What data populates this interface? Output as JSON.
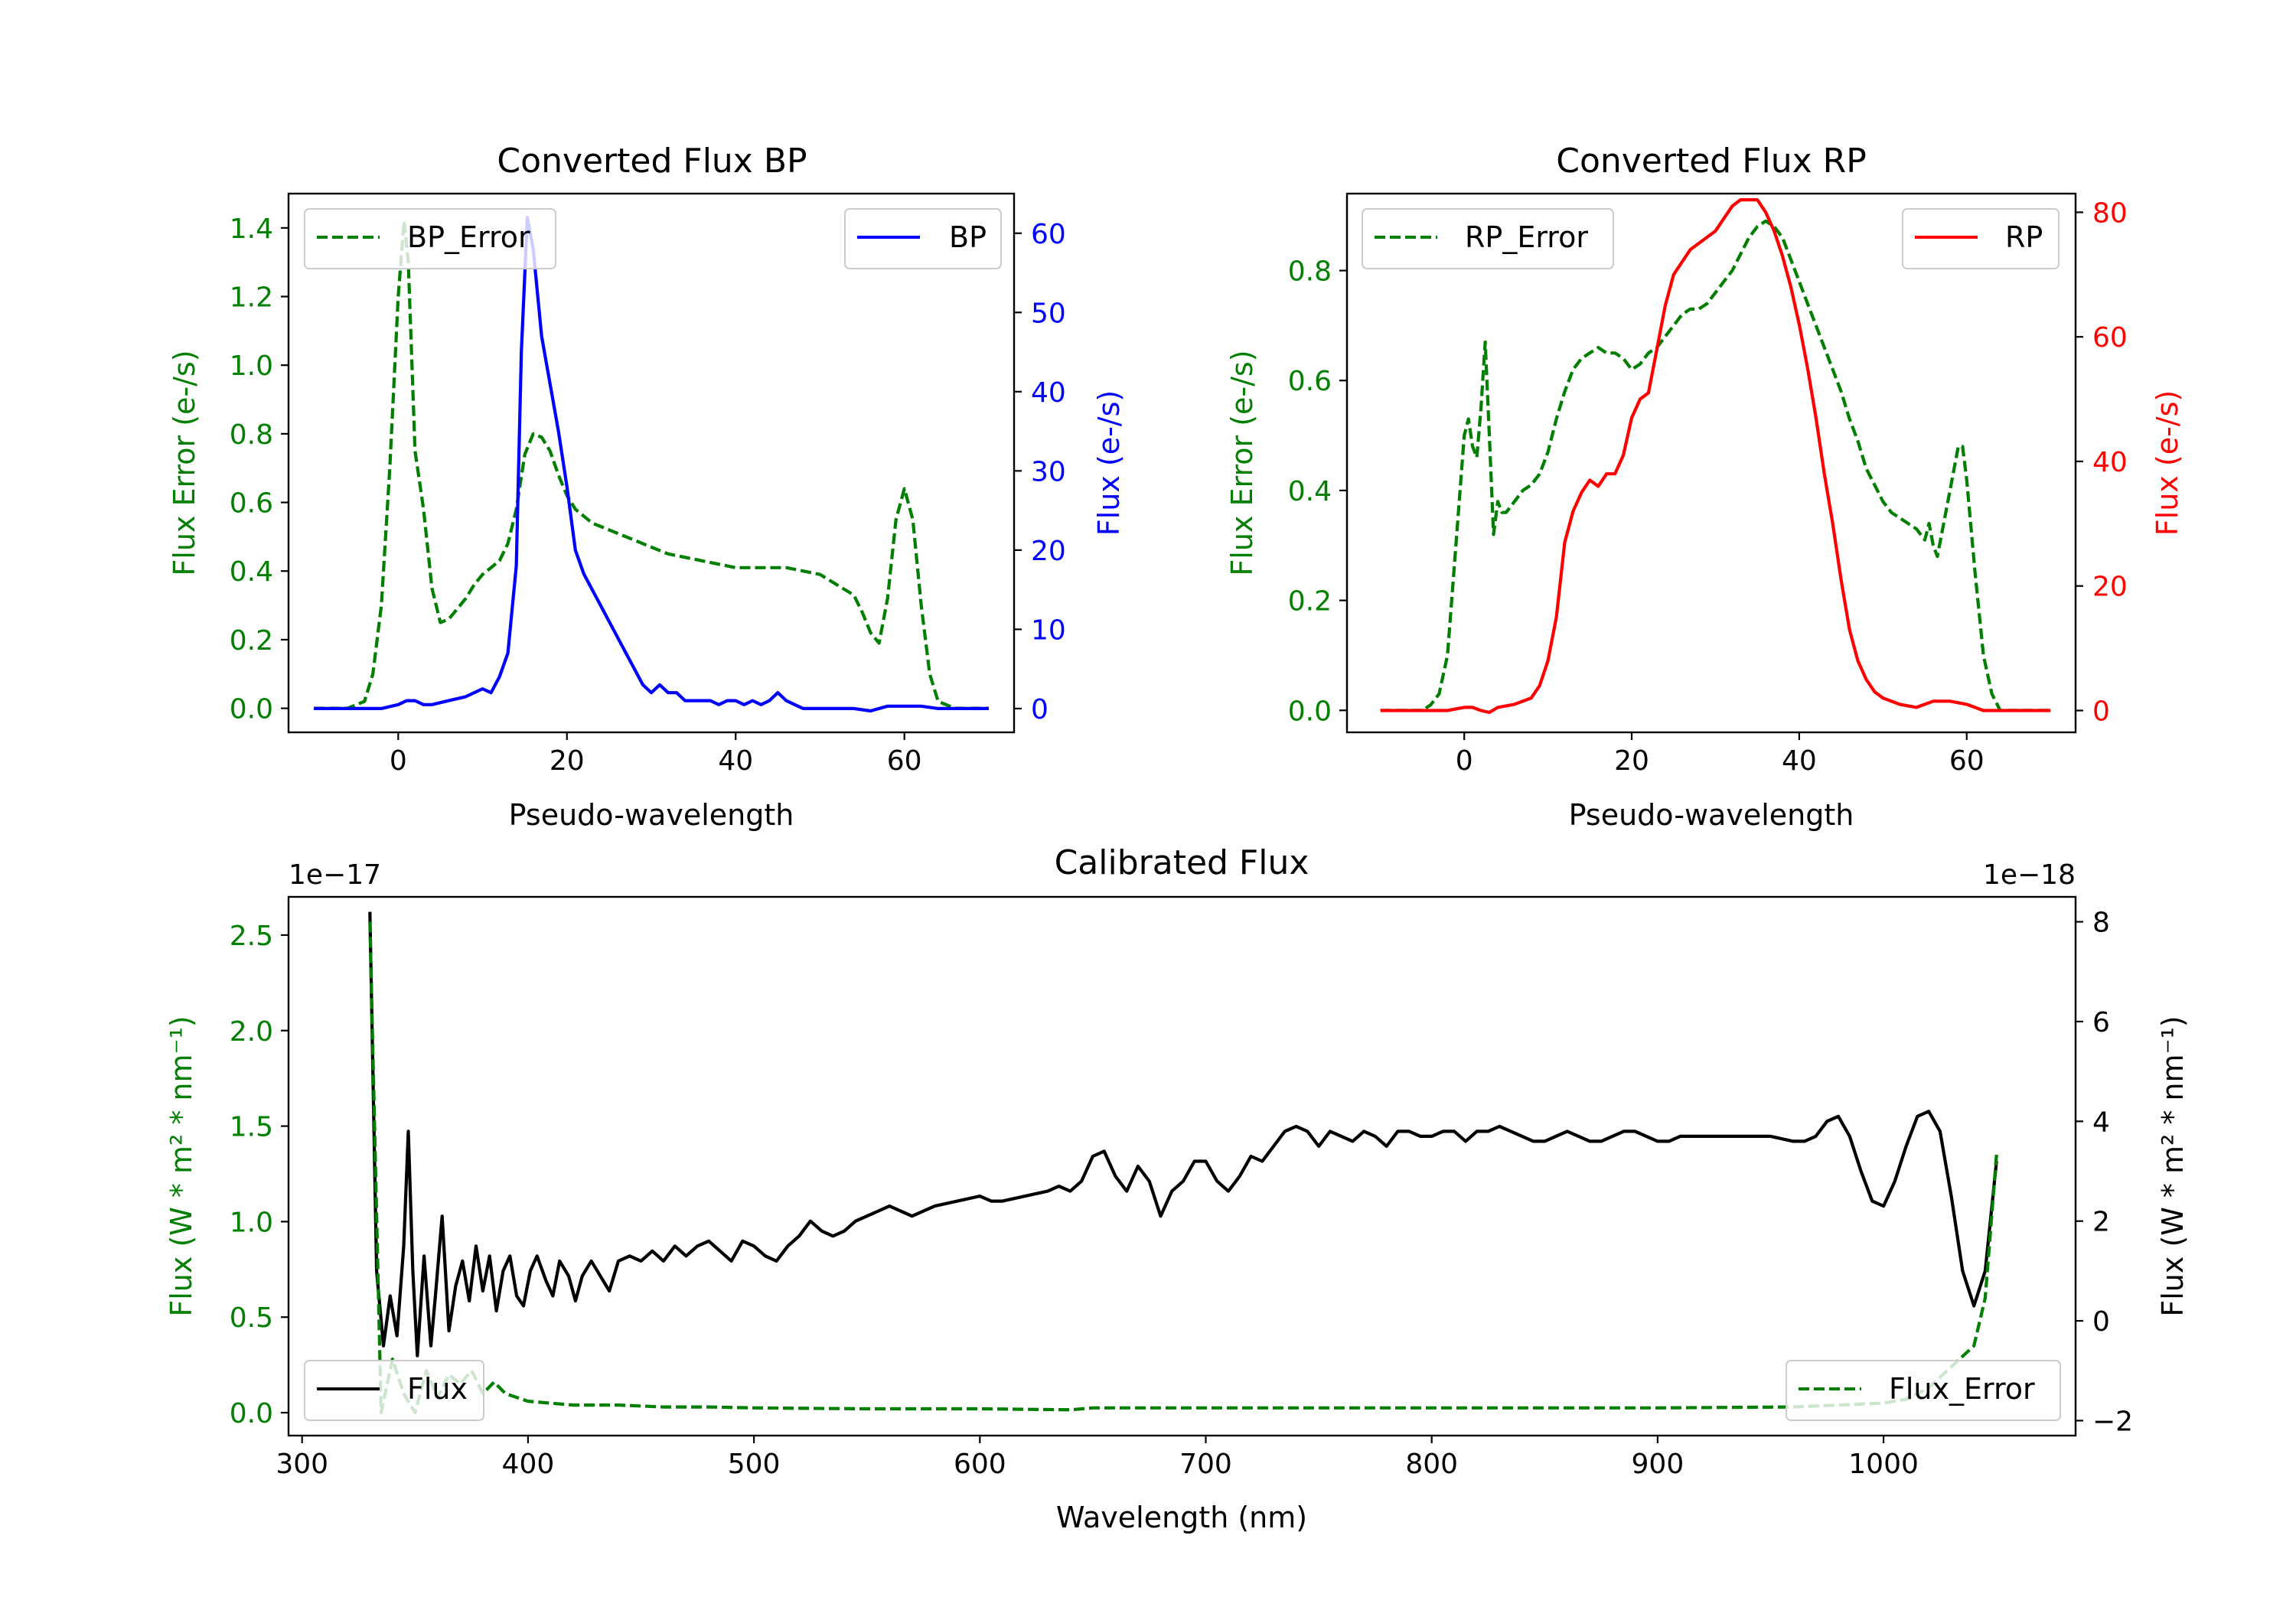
{
  "colors": {
    "bp": "#0000ff",
    "rp": "#ff0000",
    "error": "#007f00",
    "flux": "#000000",
    "axis": "#000000"
  },
  "chart_data": [
    {
      "id": "bp",
      "type": "line",
      "title": "Converted Flux BP",
      "xlabel": "Pseudo-wavelength",
      "ylabel_left": "Flux Error (e-/s)",
      "ylabel_right": "Flux (e-/s)",
      "xlim": [
        -13,
        73
      ],
      "ylim_left": [
        -0.07,
        1.5
      ],
      "ylim_right": [
        -3,
        65
      ],
      "xticks": [
        0,
        20,
        40,
        60
      ],
      "yticks_left": [
        0.0,
        0.2,
        0.4,
        0.6,
        0.8,
        1.0,
        1.2,
        1.4
      ],
      "ytick_labels_left": [
        "0.0",
        "0.2",
        "0.4",
        "0.6",
        "0.8",
        "1.0",
        "1.2",
        "1.4"
      ],
      "yticks_right": [
        0,
        10,
        20,
        30,
        40,
        50,
        60
      ],
      "ytick_labels_right": [
        "0",
        "10",
        "20",
        "30",
        "40",
        "50",
        "60"
      ],
      "series": [
        {
          "name": "BP_Error",
          "axis": "left",
          "color": "#007f00",
          "style": "dashed",
          "legend": "upper left",
          "x": [
            -10,
            -6,
            -4,
            -3,
            -2,
            -1,
            0,
            0.7,
            1.2,
            2,
            3,
            4,
            5,
            6,
            7,
            8,
            9,
            10,
            11,
            12,
            13,
            14,
            15,
            16,
            17,
            18,
            19,
            20,
            21,
            22,
            23,
            24,
            26,
            28,
            30,
            32,
            34,
            36,
            38,
            40,
            42,
            44,
            46,
            48,
            50,
            52,
            54,
            55,
            56,
            57,
            58,
            59,
            60,
            61,
            62,
            63,
            64,
            66,
            70
          ],
          "y": [
            0.0,
            0.0,
            0.02,
            0.1,
            0.3,
            0.7,
            1.2,
            1.42,
            1.3,
            0.75,
            0.58,
            0.35,
            0.25,
            0.26,
            0.29,
            0.32,
            0.36,
            0.39,
            0.41,
            0.43,
            0.48,
            0.58,
            0.74,
            0.8,
            0.79,
            0.75,
            0.68,
            0.62,
            0.58,
            0.56,
            0.54,
            0.53,
            0.51,
            0.49,
            0.47,
            0.45,
            0.44,
            0.43,
            0.42,
            0.41,
            0.41,
            0.41,
            0.41,
            0.4,
            0.39,
            0.36,
            0.33,
            0.28,
            0.22,
            0.19,
            0.32,
            0.55,
            0.64,
            0.55,
            0.3,
            0.1,
            0.02,
            0.0,
            0.0
          ]
        },
        {
          "name": "BP",
          "axis": "right",
          "color": "#0000ff",
          "style": "solid",
          "legend": "upper right",
          "x": [
            -10,
            -4,
            -2,
            0,
            1,
            2,
            3,
            4,
            6,
            8,
            10,
            11,
            12,
            13,
            14,
            14.6,
            15.3,
            16,
            17,
            18,
            19,
            20,
            21,
            22,
            23,
            24,
            25,
            26,
            27,
            28,
            29,
            30,
            31,
            32,
            33,
            34,
            35,
            36,
            37,
            38,
            39,
            40,
            41,
            42,
            43,
            44,
            45,
            46,
            47,
            48,
            50,
            52,
            54,
            56,
            58,
            60,
            62,
            64,
            66,
            68,
            70
          ],
          "y": [
            0,
            0,
            0,
            0.5,
            1,
            1,
            0.5,
            0.5,
            1,
            1.5,
            2.5,
            2,
            4,
            7,
            18,
            45,
            62,
            58,
            47,
            41,
            35,
            28,
            20,
            17,
            15,
            13,
            11,
            9,
            7,
            5,
            3,
            2,
            3,
            2,
            2,
            1,
            1,
            1,
            1,
            0.5,
            1,
            1,
            0.5,
            1,
            0.5,
            1,
            2,
            1,
            0.5,
            0,
            0,
            0,
            0,
            -0.3,
            0.3,
            0.3,
            0.3,
            0,
            0,
            0,
            0
          ]
        }
      ]
    },
    {
      "id": "rp",
      "type": "line",
      "title": "Converted Flux RP",
      "xlabel": "Pseudo-wavelength",
      "ylabel_left": "Flux Error (e-/s)",
      "ylabel_right": "Flux (e-/s)",
      "xlim": [
        -14,
        73
      ],
      "ylim_left": [
        -0.04,
        0.94
      ],
      "ylim_right": [
        -3.5,
        83
      ],
      "xticks": [
        0,
        20,
        40,
        60
      ],
      "yticks_left": [
        0.0,
        0.2,
        0.4,
        0.6,
        0.8
      ],
      "ytick_labels_left": [
        "0.0",
        "0.2",
        "0.4",
        "0.6",
        "0.8"
      ],
      "yticks_right": [
        0,
        20,
        40,
        60,
        80
      ],
      "ytick_labels_right": [
        "0",
        "20",
        "40",
        "60",
        "80"
      ],
      "series": [
        {
          "name": "RP_Error",
          "axis": "left",
          "color": "#007f00",
          "style": "dashed",
          "legend": "upper left",
          "x": [
            -10,
            -5,
            -4,
            -3,
            -2,
            -1,
            0,
            0.5,
            1,
            1.5,
            2,
            2.5,
            3,
            3.5,
            4,
            4.5,
            5,
            6,
            7,
            8,
            9,
            10,
            11,
            12,
            13,
            14,
            15,
            16,
            17,
            18,
            19,
            20,
            21,
            22,
            23,
            24,
            25,
            26,
            27,
            28,
            29,
            30,
            31,
            32,
            33,
            34,
            35,
            36,
            37,
            38,
            39,
            40,
            41,
            42,
            43,
            44,
            45,
            46,
            47,
            48,
            49,
            50,
            51,
            52,
            53,
            54,
            55,
            55.5,
            56,
            56.5,
            57,
            58,
            59,
            59.5,
            60,
            61,
            62,
            63,
            64,
            66,
            70
          ],
          "y": [
            0.0,
            0.0,
            0.01,
            0.03,
            0.1,
            0.3,
            0.5,
            0.53,
            0.48,
            0.46,
            0.55,
            0.67,
            0.5,
            0.32,
            0.38,
            0.36,
            0.36,
            0.38,
            0.4,
            0.41,
            0.43,
            0.47,
            0.53,
            0.58,
            0.62,
            0.64,
            0.65,
            0.66,
            0.65,
            0.65,
            0.64,
            0.62,
            0.63,
            0.65,
            0.66,
            0.68,
            0.7,
            0.72,
            0.73,
            0.73,
            0.74,
            0.76,
            0.78,
            0.8,
            0.83,
            0.86,
            0.88,
            0.89,
            0.88,
            0.86,
            0.82,
            0.78,
            0.74,
            0.7,
            0.66,
            0.62,
            0.58,
            0.53,
            0.49,
            0.44,
            0.41,
            0.38,
            0.36,
            0.35,
            0.34,
            0.33,
            0.31,
            0.34,
            0.3,
            0.28,
            0.32,
            0.4,
            0.48,
            0.48,
            0.42,
            0.25,
            0.1,
            0.03,
            0.0,
            0.0,
            0.0
          ]
        },
        {
          "name": "RP",
          "axis": "right",
          "color": "#ff0000",
          "style": "solid",
          "legend": "upper right",
          "x": [
            -10,
            -4,
            -2,
            0,
            1,
            2,
            3,
            4,
            6,
            8,
            9,
            10,
            11,
            12,
            13,
            14,
            15,
            16,
            17,
            18,
            19,
            20,
            21,
            22,
            23,
            24,
            25,
            26,
            27,
            28,
            29,
            30,
            31,
            32,
            33,
            34,
            35,
            36,
            37,
            38,
            39,
            40,
            41,
            42,
            43,
            44,
            45,
            46,
            47,
            48,
            49,
            50,
            52,
            54,
            56,
            58,
            60,
            62,
            64,
            66,
            70
          ],
          "y": [
            0,
            0,
            0,
            0.5,
            0.5,
            0,
            -0.3,
            0.5,
            1,
            2,
            4,
            8,
            15,
            27,
            32,
            35,
            37,
            36,
            38,
            38,
            41,
            47,
            50,
            51,
            58,
            65,
            70,
            72,
            74,
            75,
            76,
            77,
            79,
            81,
            82,
            82,
            82,
            80,
            77,
            73,
            68,
            62,
            55,
            47,
            38,
            30,
            21,
            13,
            8,
            5,
            3,
            2,
            1,
            0.5,
            1.5,
            1.5,
            1,
            0,
            0,
            0,
            0
          ]
        }
      ]
    },
    {
      "id": "calibrated",
      "type": "line",
      "title": "Calibrated Flux",
      "xlabel": "Wavelength (nm)",
      "ylabel_left": "Flux (W * m$^2$ * nm$^{-1}$)",
      "ylabel_left_text": "Flux (W * m² * nm⁻¹)",
      "ylabel_right_text": "Flux (W * m² * nm⁻¹)",
      "offset_left": "1e−17",
      "offset_right": "1e−18",
      "xlim": [
        294,
        1085
      ],
      "ylim_left": [
        -0.12,
        2.7
      ],
      "ylim_right": [
        -2.3,
        8.5
      ],
      "xticks": [
        300,
        400,
        500,
        600,
        700,
        800,
        900,
        1000
      ],
      "yticks_left": [
        0.0,
        0.5,
        1.0,
        1.5,
        2.0,
        2.5
      ],
      "ytick_labels_left": [
        "0.0",
        "0.5",
        "1.0",
        "1.5",
        "2.0",
        "2.5"
      ],
      "yticks_right": [
        -2,
        0,
        2,
        4,
        6,
        8
      ],
      "ytick_labels_right": [
        "−2",
        "0",
        "2",
        "4",
        "6",
        "8"
      ],
      "series": [
        {
          "name": "Flux",
          "axis": "right",
          "color": "#000000",
          "style": "solid",
          "legend": "lower left",
          "x": [
            330,
            333,
            336,
            339,
            342,
            345,
            347,
            349,
            351,
            354,
            357,
            359,
            362,
            365,
            368,
            371,
            374,
            377,
            380,
            383,
            386,
            389,
            392,
            395,
            398,
            401,
            404,
            408,
            411,
            414,
            418,
            421,
            424,
            428,
            432,
            436,
            440,
            445,
            450,
            455,
            460,
            465,
            470,
            475,
            480,
            485,
            490,
            495,
            500,
            505,
            510,
            515,
            520,
            525,
            530,
            535,
            540,
            545,
            550,
            560,
            570,
            580,
            590,
            600,
            605,
            610,
            620,
            630,
            635,
            640,
            645,
            650,
            655,
            660,
            665,
            670,
            675,
            680,
            685,
            690,
            695,
            700,
            705,
            710,
            715,
            720,
            725,
            730,
            735,
            740,
            745,
            750,
            755,
            760,
            765,
            770,
            775,
            780,
            785,
            790,
            795,
            800,
            805,
            810,
            815,
            820,
            825,
            830,
            835,
            840,
            845,
            850,
            855,
            860,
            865,
            870,
            875,
            880,
            885,
            890,
            895,
            900,
            905,
            910,
            920,
            930,
            940,
            950,
            960,
            965,
            970,
            975,
            980,
            985,
            990,
            995,
            1000,
            1005,
            1010,
            1015,
            1020,
            1025,
            1030,
            1035,
            1040,
            1045,
            1050
          ],
          "y": [
            8.2,
            1.0,
            -0.5,
            0.5,
            -0.3,
            1.5,
            3.8,
            1.0,
            -0.7,
            1.3,
            -0.5,
            0.5,
            2.1,
            -0.2,
            0.7,
            1.2,
            0.4,
            1.5,
            0.6,
            1.3,
            0.2,
            1.0,
            1.3,
            0.5,
            0.3,
            1.0,
            1.3,
            0.8,
            0.5,
            1.2,
            0.9,
            0.4,
            0.9,
            1.2,
            0.9,
            0.6,
            1.2,
            1.3,
            1.2,
            1.4,
            1.2,
            1.5,
            1.3,
            1.5,
            1.6,
            1.4,
            1.2,
            1.6,
            1.5,
            1.3,
            1.2,
            1.5,
            1.7,
            2.0,
            1.8,
            1.7,
            1.8,
            2.0,
            2.1,
            2.3,
            2.1,
            2.3,
            2.4,
            2.5,
            2.4,
            2.4,
            2.5,
            2.6,
            2.7,
            2.6,
            2.8,
            3.3,
            3.4,
            2.9,
            2.6,
            3.1,
            2.8,
            2.1,
            2.6,
            2.8,
            3.2,
            3.2,
            2.8,
            2.6,
            2.9,
            3.3,
            3.2,
            3.5,
            3.8,
            3.9,
            3.8,
            3.5,
            3.8,
            3.7,
            3.6,
            3.8,
            3.7,
            3.5,
            3.8,
            3.8,
            3.7,
            3.7,
            3.8,
            3.8,
            3.6,
            3.8,
            3.8,
            3.9,
            3.8,
            3.7,
            3.6,
            3.6,
            3.7,
            3.8,
            3.7,
            3.6,
            3.6,
            3.7,
            3.8,
            3.8,
            3.7,
            3.6,
            3.6,
            3.7,
            3.7,
            3.7,
            3.7,
            3.7,
            3.6,
            3.6,
            3.7,
            4.0,
            4.1,
            3.7,
            3.0,
            2.4,
            2.3,
            2.8,
            3.5,
            4.1,
            4.2,
            3.8,
            2.5,
            1.0,
            0.3,
            1.0,
            3.2
          ]
        },
        {
          "name": "Flux_Error",
          "axis": "left",
          "color": "#007f00",
          "style": "dashed",
          "legend": "lower right",
          "x": [
            330,
            335,
            340,
            345,
            350,
            355,
            360,
            365,
            370,
            375,
            380,
            385,
            390,
            395,
            400,
            410,
            420,
            440,
            460,
            480,
            500,
            550,
            600,
            640,
            650,
            700,
            800,
            900,
            960,
            980,
            1000,
            1010,
            1020,
            1030,
            1040,
            1045,
            1050
          ],
          "y": [
            2.57,
            0.0,
            0.28,
            0.1,
            0.0,
            0.22,
            0.08,
            0.2,
            0.15,
            0.22,
            0.1,
            0.16,
            0.1,
            0.08,
            0.06,
            0.05,
            0.04,
            0.04,
            0.03,
            0.03,
            0.025,
            0.02,
            0.02,
            0.015,
            0.025,
            0.025,
            0.025,
            0.025,
            0.03,
            0.04,
            0.05,
            0.07,
            0.13,
            0.24,
            0.35,
            0.6,
            1.35
          ]
        }
      ]
    }
  ]
}
